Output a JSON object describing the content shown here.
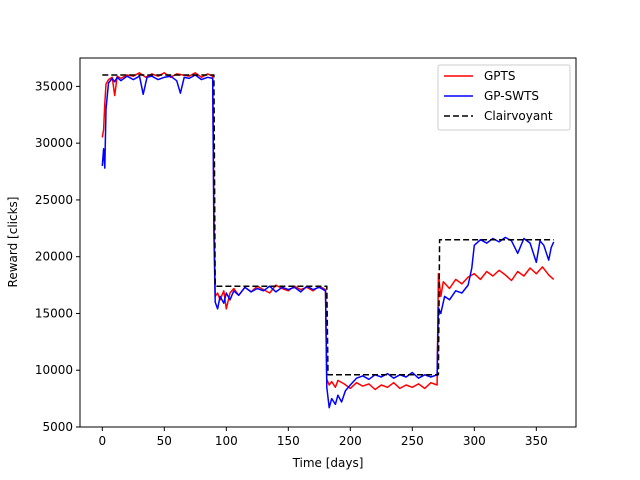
{
  "chart_data": {
    "type": "line",
    "title": "",
    "xlabel": "Time [days]",
    "ylabel": "Reward [clicks]",
    "xlim": [
      -18,
      382
    ],
    "ylim": [
      5000,
      37500
    ],
    "xticks": [
      0,
      50,
      100,
      150,
      200,
      250,
      300,
      350
    ],
    "yticks": [
      5000,
      10000,
      15000,
      20000,
      25000,
      30000,
      35000
    ],
    "grid": false,
    "legend_position": "top-right",
    "series": [
      {
        "name": "GPTS",
        "color": "#ff0000",
        "style": "solid",
        "points": [
          [
            0,
            30500
          ],
          [
            1,
            31200
          ],
          [
            2,
            33500
          ],
          [
            3,
            35200
          ],
          [
            5,
            35600
          ],
          [
            8,
            35800
          ],
          [
            10,
            34200
          ],
          [
            12,
            35900
          ],
          [
            15,
            35700
          ],
          [
            20,
            36000
          ],
          [
            25,
            35900
          ],
          [
            30,
            36200
          ],
          [
            35,
            35800
          ],
          [
            40,
            36100
          ],
          [
            45,
            35900
          ],
          [
            50,
            36200
          ],
          [
            55,
            35800
          ],
          [
            60,
            36100
          ],
          [
            65,
            36000
          ],
          [
            70,
            35900
          ],
          [
            75,
            36200
          ],
          [
            80,
            35800
          ],
          [
            85,
            36100
          ],
          [
            89,
            35900
          ],
          [
            90,
            24000
          ],
          [
            91,
            16500
          ],
          [
            93,
            16800
          ],
          [
            95,
            16200
          ],
          [
            98,
            17000
          ],
          [
            100,
            15400
          ],
          [
            103,
            16800
          ],
          [
            106,
            17200
          ],
          [
            110,
            16600
          ],
          [
            115,
            17300
          ],
          [
            120,
            16900
          ],
          [
            125,
            17400
          ],
          [
            130,
            17100
          ],
          [
            135,
            16800
          ],
          [
            140,
            17500
          ],
          [
            145,
            17200
          ],
          [
            150,
            17000
          ],
          [
            155,
            17400
          ],
          [
            160,
            17100
          ],
          [
            165,
            17300
          ],
          [
            170,
            17000
          ],
          [
            175,
            17400
          ],
          [
            180,
            17100
          ],
          [
            181,
            9200
          ],
          [
            183,
            8700
          ],
          [
            185,
            9000
          ],
          [
            188,
            8500
          ],
          [
            190,
            9100
          ],
          [
            195,
            8800
          ],
          [
            200,
            8400
          ],
          [
            205,
            8900
          ],
          [
            210,
            8600
          ],
          [
            215,
            8800
          ],
          [
            220,
            8300
          ],
          [
            225,
            8700
          ],
          [
            230,
            8500
          ],
          [
            235,
            8900
          ],
          [
            240,
            8400
          ],
          [
            245,
            8700
          ],
          [
            250,
            8500
          ],
          [
            255,
            8800
          ],
          [
            260,
            8400
          ],
          [
            265,
            8900
          ],
          [
            270,
            8700
          ],
          [
            271,
            18500
          ],
          [
            273,
            16500
          ],
          [
            275,
            17800
          ],
          [
            280,
            17200
          ],
          [
            285,
            18000
          ],
          [
            290,
            17600
          ],
          [
            295,
            18200
          ],
          [
            300,
            18500
          ],
          [
            305,
            18000
          ],
          [
            310,
            18700
          ],
          [
            315,
            18300
          ],
          [
            320,
            18800
          ],
          [
            325,
            18400
          ],
          [
            330,
            17900
          ],
          [
            335,
            18700
          ],
          [
            340,
            18300
          ],
          [
            345,
            19000
          ],
          [
            350,
            18500
          ],
          [
            355,
            19100
          ],
          [
            360,
            18400
          ],
          [
            364,
            18000
          ]
        ]
      },
      {
        "name": "GP-SWTS",
        "color": "#0000ff",
        "style": "solid",
        "points": [
          [
            0,
            28000
          ],
          [
            1,
            29500
          ],
          [
            2,
            27800
          ],
          [
            3,
            33000
          ],
          [
            5,
            35300
          ],
          [
            8,
            35700
          ],
          [
            10,
            35400
          ],
          [
            12,
            35800
          ],
          [
            15,
            35500
          ],
          [
            20,
            35900
          ],
          [
            25,
            35600
          ],
          [
            30,
            35900
          ],
          [
            33,
            34300
          ],
          [
            36,
            35800
          ],
          [
            40,
            35900
          ],
          [
            45,
            35600
          ],
          [
            50,
            35800
          ],
          [
            55,
            35900
          ],
          [
            60,
            35500
          ],
          [
            63,
            34400
          ],
          [
            66,
            35800
          ],
          [
            70,
            35700
          ],
          [
            75,
            36000
          ],
          [
            80,
            35600
          ],
          [
            85,
            35800
          ],
          [
            89,
            35700
          ],
          [
            90,
            22000
          ],
          [
            91,
            16000
          ],
          [
            93,
            15400
          ],
          [
            95,
            16500
          ],
          [
            98,
            15900
          ],
          [
            100,
            16800
          ],
          [
            103,
            16200
          ],
          [
            106,
            17000
          ],
          [
            110,
            16600
          ],
          [
            115,
            17300
          ],
          [
            120,
            16900
          ],
          [
            125,
            17200
          ],
          [
            130,
            17000
          ],
          [
            135,
            17400
          ],
          [
            140,
            16900
          ],
          [
            145,
            17300
          ],
          [
            150,
            17100
          ],
          [
            155,
            17300
          ],
          [
            160,
            16900
          ],
          [
            165,
            17400
          ],
          [
            170,
            17100
          ],
          [
            175,
            17300
          ],
          [
            180,
            17000
          ],
          [
            181,
            8500
          ],
          [
            183,
            6700
          ],
          [
            185,
            7500
          ],
          [
            188,
            7000
          ],
          [
            190,
            7800
          ],
          [
            193,
            7200
          ],
          [
            196,
            8200
          ],
          [
            200,
            8700
          ],
          [
            205,
            9300
          ],
          [
            210,
            9500
          ],
          [
            215,
            9200
          ],
          [
            220,
            9600
          ],
          [
            225,
            9400
          ],
          [
            230,
            9700
          ],
          [
            235,
            9300
          ],
          [
            240,
            9600
          ],
          [
            245,
            9400
          ],
          [
            250,
            9800
          ],
          [
            255,
            9300
          ],
          [
            260,
            9600
          ],
          [
            265,
            9400
          ],
          [
            270,
            9600
          ],
          [
            271,
            15500
          ],
          [
            273,
            15000
          ],
          [
            276,
            16500
          ],
          [
            280,
            16200
          ],
          [
            285,
            17000
          ],
          [
            290,
            16800
          ],
          [
            295,
            17500
          ],
          [
            298,
            19000
          ],
          [
            300,
            21000
          ],
          [
            305,
            21500
          ],
          [
            310,
            21200
          ],
          [
            315,
            21600
          ],
          [
            320,
            21300
          ],
          [
            325,
            21700
          ],
          [
            330,
            21400
          ],
          [
            335,
            20300
          ],
          [
            340,
            21600
          ],
          [
            345,
            21200
          ],
          [
            350,
            19500
          ],
          [
            353,
            21400
          ],
          [
            356,
            21000
          ],
          [
            360,
            19700
          ],
          [
            362,
            20800
          ],
          [
            364,
            21300
          ]
        ]
      },
      {
        "name": "Clairvoyant",
        "color": "#000000",
        "style": "dashed",
        "points": [
          [
            0,
            36000
          ],
          [
            90,
            36000
          ],
          [
            91,
            17400
          ],
          [
            181,
            17400
          ],
          [
            182,
            9600
          ],
          [
            271,
            9600
          ],
          [
            272,
            21500
          ],
          [
            364,
            21500
          ]
        ]
      }
    ]
  }
}
